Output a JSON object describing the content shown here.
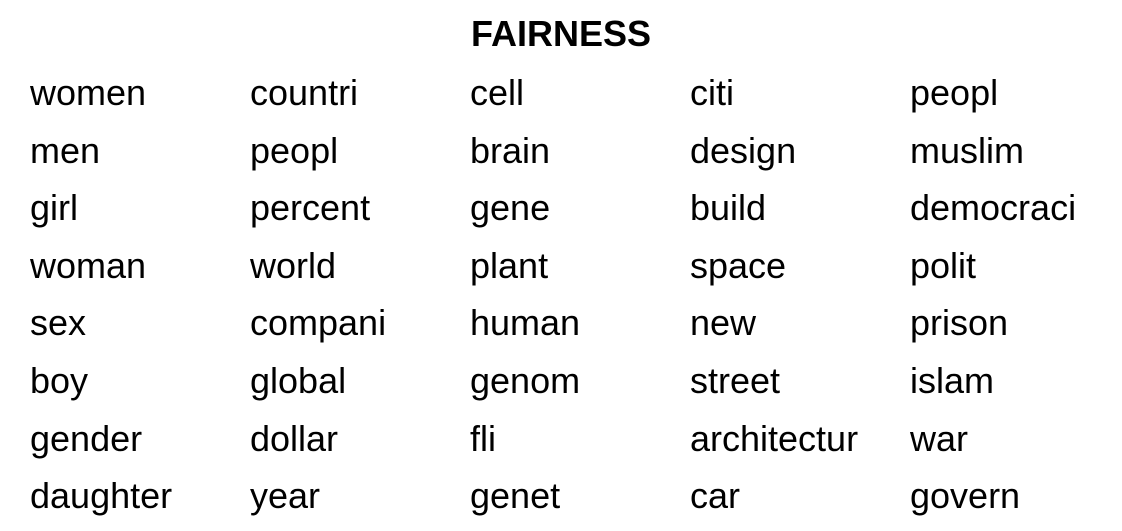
{
  "title": "FAIRNESS",
  "columns": [
    [
      "women",
      "men",
      "girl",
      "woman",
      "sex",
      "boy",
      "gender",
      "daughter"
    ],
    [
      "countri",
      "peopl",
      "percent",
      "world",
      "compani",
      "global",
      "dollar",
      "year"
    ],
    [
      "cell",
      "brain",
      "gene",
      "plant",
      "human",
      "genom",
      "fli",
      "genet"
    ],
    [
      "citi",
      "design",
      "build",
      "space",
      "new",
      "street",
      "architectur",
      "car"
    ],
    [
      "peopl",
      "muslim",
      "democraci",
      "polit",
      "prison",
      "islam",
      "war",
      "govern"
    ]
  ]
}
